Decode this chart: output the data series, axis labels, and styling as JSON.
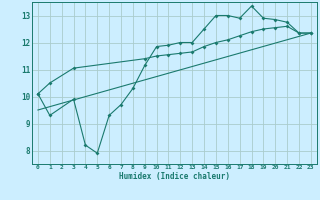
{
  "xlabel": "Humidex (Indice chaleur)",
  "bg_color": "#cceeff",
  "line_color": "#1a7a6e",
  "grid_color": "#aacccc",
  "xlim": [
    -0.5,
    23.5
  ],
  "ylim": [
    7.5,
    13.5
  ],
  "xticks": [
    0,
    1,
    2,
    3,
    4,
    5,
    6,
    7,
    8,
    9,
    10,
    11,
    12,
    13,
    14,
    15,
    16,
    17,
    18,
    19,
    20,
    21,
    22,
    23
  ],
  "yticks": [
    8,
    9,
    10,
    11,
    12,
    13
  ],
  "series1_x": [
    0,
    1,
    3,
    4,
    5,
    6,
    7,
    8,
    9,
    10,
    11,
    12,
    13,
    14,
    15,
    16,
    17,
    18,
    19,
    20,
    21,
    22,
    23
  ],
  "series1_y": [
    10.1,
    9.3,
    9.9,
    8.2,
    7.9,
    9.3,
    9.7,
    10.3,
    11.15,
    11.85,
    11.9,
    12.0,
    12.0,
    12.5,
    13.0,
    13.0,
    12.9,
    13.35,
    12.9,
    12.85,
    12.75,
    12.35,
    12.35
  ],
  "series2_x": [
    0,
    1,
    3,
    9,
    10,
    11,
    12,
    13,
    14,
    15,
    16,
    17,
    18,
    19,
    20,
    21,
    22,
    23
  ],
  "series2_y": [
    10.1,
    10.5,
    11.05,
    11.4,
    11.5,
    11.55,
    11.6,
    11.65,
    11.85,
    12.0,
    12.1,
    12.25,
    12.4,
    12.5,
    12.55,
    12.6,
    12.35,
    12.35
  ],
  "series3_x": [
    0,
    23
  ],
  "series3_y": [
    9.5,
    12.35
  ]
}
